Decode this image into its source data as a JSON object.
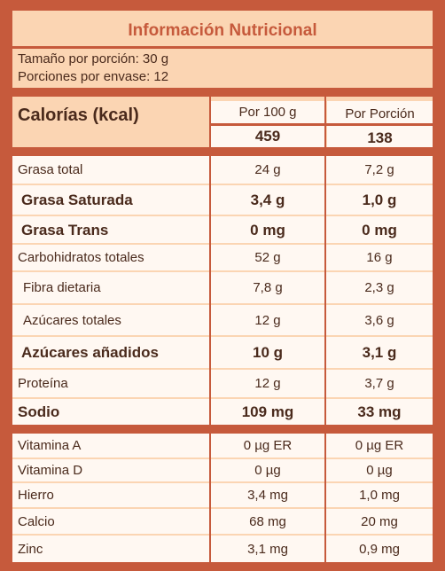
{
  "title": "Información Nutricional",
  "serving": {
    "size": "Tamaño por porción: 30 g",
    "count": "Porciones por envase: 12"
  },
  "calories": {
    "label": "Calorías (kcal)",
    "col1_header": "Por 100 g",
    "col2_header": "Por Porción",
    "per100": "459",
    "perServing": "138"
  },
  "rows": [
    {
      "name": "Grasa total",
      "per100": "24 g",
      "perServing": "7,2 g"
    },
    {
      "name": "Grasa Saturada",
      "per100": "3,4 g",
      "perServing": "1,0 g"
    },
    {
      "name": "Grasa Trans",
      "per100": "0 mg",
      "perServing": "0 mg"
    },
    {
      "name": "Carbohidratos totales",
      "per100": "52 g",
      "perServing": "16 g"
    },
    {
      "name": "Fibra dietaria",
      "per100": "7,8 g",
      "perServing": "2,3 g"
    },
    {
      "name": "Azúcares totales",
      "per100": "12 g",
      "perServing": "3,6 g"
    },
    {
      "name": "Azúcares añadidos",
      "per100": "10 g",
      "perServing": "3,1 g"
    },
    {
      "name": "Proteína",
      "per100": "12 g",
      "perServing": "3,7 g"
    },
    {
      "name": "Sodio",
      "per100": "109 mg",
      "perServing": "33 mg"
    }
  ],
  "vitamins": [
    {
      "name": "Vitamina A",
      "per100": "0 µg ER",
      "perServing": "0 µg ER"
    },
    {
      "name": "Vitamina D",
      "per100": "0 µg",
      "perServing": "0 µg"
    },
    {
      "name": "Hierro",
      "per100": "3,4 mg",
      "perServing": "1,0 mg"
    },
    {
      "name": "Calcio",
      "per100": "68 mg",
      "perServing": "20 mg"
    },
    {
      "name": "Zinc",
      "per100": "3,1 mg",
      "perServing": "0,9 mg"
    }
  ],
  "colors": {
    "border": "#c65a3c",
    "background": "#fbd5b3",
    "text": "#4a2a1c",
    "title": "#c65a3c"
  }
}
